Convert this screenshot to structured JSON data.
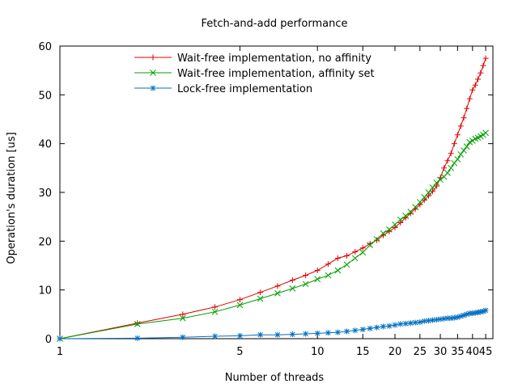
{
  "chart_data": {
    "type": "line",
    "title": "Fetch-and-add performance",
    "xlabel": "Number of threads",
    "ylabel": "Operation's duration [us]",
    "xscale": "log",
    "xlim": [
      1,
      48
    ],
    "ylim": [
      0,
      60
    ],
    "xticks": [
      1,
      5,
      10,
      15,
      20,
      25,
      30,
      35,
      40,
      45
    ],
    "yticks": [
      0,
      10,
      20,
      30,
      40,
      50,
      60
    ],
    "grid": false,
    "legend_position": "top",
    "series": [
      {
        "name": "Wait-free implementation, no affinity",
        "color": "#e00000",
        "marker": "plus",
        "x": [
          1,
          2,
          3,
          4,
          5,
          6,
          7,
          8,
          9,
          10,
          11,
          12,
          13,
          14,
          15,
          16,
          17,
          18,
          19,
          20,
          21,
          22,
          23,
          24,
          25,
          26,
          27,
          28,
          29,
          30,
          31,
          32,
          33,
          34,
          35,
          36,
          37,
          38,
          39,
          40,
          41,
          42,
          43,
          44,
          45
        ],
        "y": [
          0,
          3.2,
          5.0,
          6.5,
          8.0,
          9.5,
          10.8,
          12.0,
          13.0,
          14.0,
          15.3,
          16.5,
          17.0,
          17.8,
          18.6,
          19.5,
          20.2,
          21.2,
          22.0,
          22.8,
          23.8,
          24.8,
          25.7,
          26.6,
          27.5,
          28.4,
          29.3,
          30.2,
          31.3,
          33.0,
          35.0,
          36.5,
          38.0,
          40.0,
          41.8,
          43.6,
          45.3,
          47.2,
          49.2,
          51.0,
          52.0,
          53.2,
          54.5,
          56.0,
          57.5
        ]
      },
      {
        "name": "Wait-free implementation, affinity set",
        "color": "#00a000",
        "marker": "cross",
        "x": [
          1,
          2,
          3,
          4,
          5,
          6,
          7,
          8,
          9,
          10,
          11,
          12,
          13,
          14,
          15,
          16,
          17,
          18,
          19,
          20,
          21,
          22,
          23,
          24,
          25,
          26,
          27,
          28,
          29,
          30,
          31,
          32,
          33,
          34,
          35,
          36,
          37,
          38,
          39,
          40,
          41,
          42,
          43,
          44,
          45
        ],
        "y": [
          0,
          3.0,
          4.2,
          5.5,
          6.9,
          8.2,
          9.3,
          10.3,
          11.2,
          12.2,
          13.0,
          14.0,
          15.2,
          16.5,
          17.7,
          19.2,
          20.4,
          21.6,
          22.4,
          23.4,
          24.4,
          25.2,
          26.0,
          27.0,
          28.0,
          29.0,
          30.0,
          31.0,
          32.0,
          32.6,
          33.2,
          34.0,
          35.0,
          36.0,
          36.8,
          37.8,
          38.6,
          39.4,
          40.3,
          40.6,
          41.0,
          41.2,
          41.5,
          41.8,
          42.2
        ]
      },
      {
        "name": "Lock-free implementation",
        "color": "#0070c0",
        "marker": "star",
        "x": [
          1,
          2,
          3,
          4,
          5,
          6,
          7,
          8,
          9,
          10,
          11,
          12,
          13,
          14,
          15,
          16,
          17,
          18,
          19,
          20,
          21,
          22,
          23,
          24,
          25,
          26,
          27,
          28,
          29,
          30,
          31,
          32,
          33,
          34,
          35,
          36,
          37,
          38,
          39,
          40,
          41,
          42,
          43,
          44,
          45
        ],
        "y": [
          0,
          0.1,
          0.3,
          0.5,
          0.6,
          0.8,
          0.8,
          0.9,
          1.0,
          1.1,
          1.2,
          1.3,
          1.5,
          1.7,
          1.9,
          2.1,
          2.3,
          2.5,
          2.6,
          2.8,
          3.0,
          3.1,
          3.2,
          3.3,
          3.4,
          3.6,
          3.7,
          3.8,
          3.9,
          4.0,
          4.1,
          4.2,
          4.2,
          4.3,
          4.4,
          4.6,
          4.8,
          5.0,
          5.2,
          5.2,
          5.3,
          5.4,
          5.5,
          5.6,
          5.8
        ]
      }
    ]
  }
}
